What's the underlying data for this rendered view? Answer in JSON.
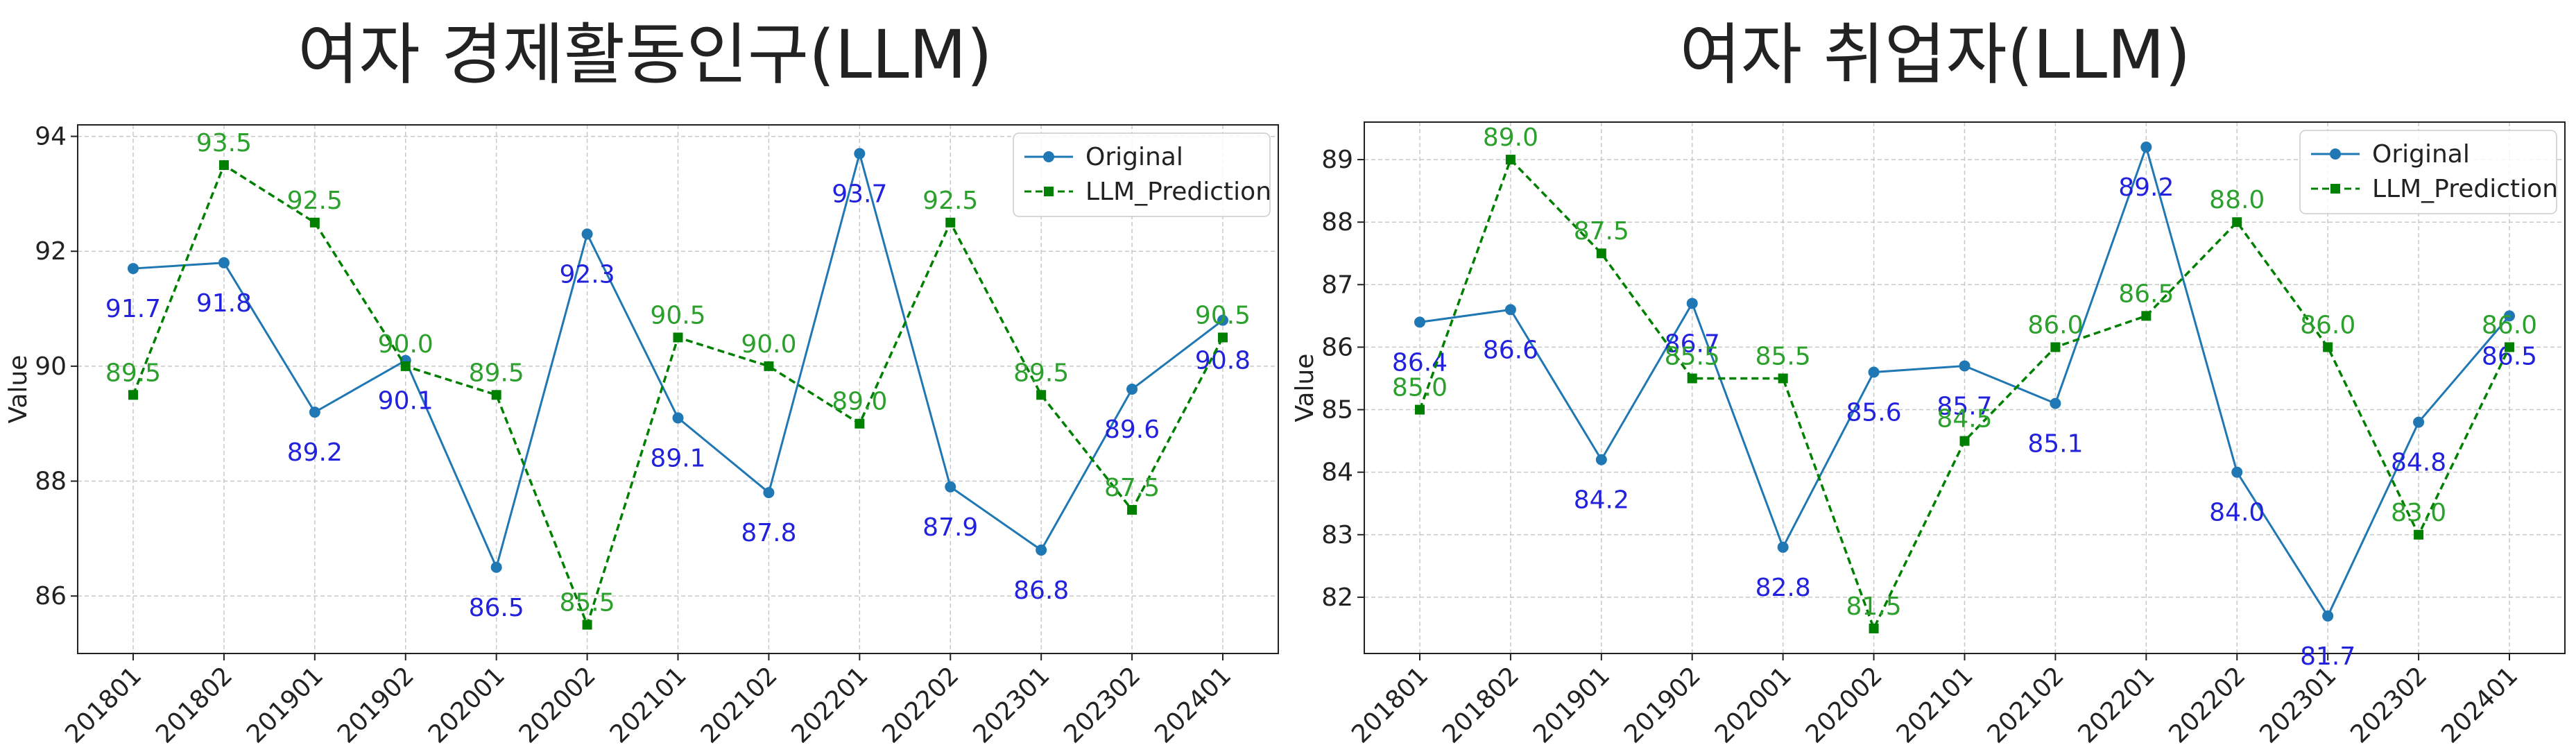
{
  "colors": {
    "original": "#1f77b4",
    "prediction": "#008000",
    "original_label": "#2222dd",
    "prediction_label": "#2ca02c",
    "grid": "#c8c8c8"
  },
  "chart_data": [
    {
      "type": "line",
      "title": "여자 경제활동인구(LLM)",
      "ylabel": "Value",
      "xlabel": "",
      "ylim": [
        85.0,
        94.2
      ],
      "yticks": [
        86,
        88,
        90,
        92,
        94
      ],
      "grid": true,
      "legend_position": "top-right",
      "categories": [
        "201801",
        "201802",
        "201901",
        "201902",
        "202001",
        "202002",
        "202101",
        "202102",
        "202201",
        "202202",
        "202301",
        "202302",
        "202401"
      ],
      "series": [
        {
          "name": "Original",
          "style": "solid",
          "marker": "circle",
          "values": [
            91.7,
            91.8,
            89.2,
            90.1,
            86.5,
            92.3,
            89.1,
            87.8,
            93.7,
            87.9,
            86.8,
            89.6,
            90.8
          ]
        },
        {
          "name": "LLM_Prediction",
          "style": "dashed",
          "marker": "square",
          "values": [
            89.5,
            93.5,
            92.5,
            90.0,
            89.5,
            85.5,
            90.5,
            90.0,
            89.0,
            92.5,
            89.5,
            87.5,
            90.5
          ]
        }
      ]
    },
    {
      "type": "line",
      "title": "여자 취업자(LLM)",
      "ylabel": "Value",
      "xlabel": "",
      "ylim": [
        81.1,
        89.6
      ],
      "yticks": [
        82,
        83,
        84,
        85,
        86,
        87,
        88,
        89
      ],
      "grid": true,
      "legend_position": "top-right",
      "categories": [
        "201801",
        "201802",
        "201901",
        "201902",
        "202001",
        "202002",
        "202101",
        "202102",
        "202201",
        "202202",
        "202301",
        "202302",
        "202401"
      ],
      "series": [
        {
          "name": "Original",
          "style": "solid",
          "marker": "circle",
          "values": [
            86.4,
            86.6,
            84.2,
            86.7,
            82.8,
            85.6,
            85.7,
            85.1,
            89.2,
            84.0,
            81.7,
            84.8,
            86.5
          ]
        },
        {
          "name": "LLM_Prediction",
          "style": "dashed",
          "marker": "square",
          "values": [
            85.0,
            89.0,
            87.5,
            85.5,
            85.5,
            81.5,
            84.5,
            86.0,
            86.5,
            88.0,
            86.0,
            83.0,
            86.0
          ]
        }
      ]
    }
  ]
}
